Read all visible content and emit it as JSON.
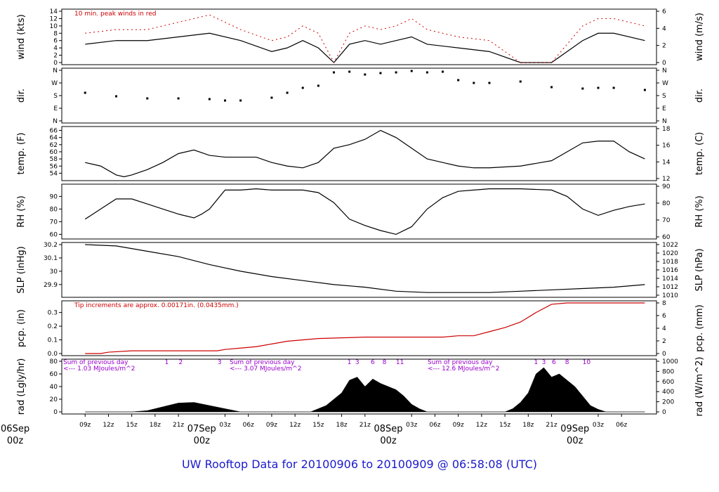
{
  "footer": {
    "title": "UW Rooftop Data for 20100906  to  20100909 @ 06:58:08  (UTC)"
  },
  "colors": {
    "black": "#000000",
    "red": "#cc0000",
    "purple": "#9900cc",
    "footer_blue": "#1a1acc"
  },
  "chart_data": [
    {
      "type": "line",
      "ylabel": "wind (kts)",
      "ylabel_right": "wind (m/s)",
      "ylim": [
        0,
        14
      ],
      "yticks": [
        0,
        2,
        4,
        6,
        8,
        10,
        12,
        14
      ],
      "yticks_right": [
        0,
        2,
        4,
        6
      ],
      "annotation": "10 min. peak winds in red",
      "grid": false,
      "series": [
        {
          "role": "wind",
          "x": [
            0,
            4,
            8,
            12,
            16,
            20,
            24,
            26,
            28,
            30,
            32,
            34,
            36,
            38,
            40,
            42,
            44,
            48,
            52,
            56,
            60,
            64,
            66,
            68,
            72
          ],
          "y": [
            5,
            6,
            6,
            7,
            8,
            6,
            3,
            4,
            6,
            4,
            0,
            5,
            6,
            5,
            6,
            7,
            5,
            4,
            3,
            0,
            0,
            6,
            8,
            8,
            6
          ]
        },
        {
          "role": "peak",
          "x": [
            0,
            4,
            8,
            12,
            16,
            20,
            24,
            26,
            28,
            30,
            32,
            34,
            36,
            38,
            40,
            42,
            44,
            48,
            52,
            56,
            60,
            64,
            66,
            68,
            72
          ],
          "y": [
            8,
            9,
            9,
            11,
            13,
            9,
            6,
            7,
            10,
            8,
            0,
            8,
            10,
            9,
            10,
            12,
            9,
            7,
            6,
            0,
            0,
            10,
            12,
            12,
            10
          ]
        }
      ]
    },
    {
      "type": "scatter",
      "ylabel": "dir.",
      "ylabel_right": "dir.",
      "yticks": [
        "N",
        "E",
        "S",
        "W",
        "N"
      ],
      "yticks_right": [
        "N",
        "E",
        "S",
        "W",
        "N"
      ],
      "grid": false,
      "series": [
        {
          "x": [
            0,
            4,
            8,
            12,
            16,
            18,
            20,
            24,
            26,
            28,
            30,
            32,
            34,
            36,
            38,
            40,
            42,
            44,
            46,
            48,
            50,
            52,
            56,
            60,
            64,
            66,
            68,
            72
          ],
          "y": [
            200,
            175,
            160,
            160,
            155,
            145,
            145,
            165,
            200,
            235,
            250,
            345,
            350,
            330,
            340,
            345,
            355,
            345,
            350,
            290,
            270,
            270,
            280,
            240,
            230,
            235,
            235,
            220
          ]
        }
      ]
    },
    {
      "type": "line",
      "ylabel": "temp. (F)",
      "ylabel_right": "temp. (C)",
      "ylim": [
        52.5,
        66.5
      ],
      "yticks": [
        54,
        56,
        58,
        60,
        62,
        64,
        66
      ],
      "yticks_right": [
        12,
        14,
        16,
        18
      ],
      "grid": false,
      "series": [
        {
          "x": [
            0,
            2,
            4,
            5,
            6,
            8,
            10,
            12,
            14,
            16,
            18,
            20,
            22,
            24,
            26,
            28,
            30,
            32,
            34,
            36,
            38,
            40,
            42,
            44,
            46,
            48,
            50,
            52,
            56,
            60,
            62,
            64,
            66,
            68,
            70,
            72
          ],
          "y": [
            57,
            56,
            53.5,
            53,
            53.5,
            55,
            57,
            59.5,
            60.5,
            59,
            58.5,
            58.5,
            58.5,
            57,
            56,
            55.5,
            57,
            61,
            62,
            63.5,
            66,
            64,
            61,
            58,
            57,
            56,
            55.5,
            55.5,
            56,
            57.5,
            60,
            62.5,
            63,
            63,
            60,
            58
          ]
        }
      ]
    },
    {
      "type": "line",
      "ylabel": "RH (%)",
      "ylabel_right": "RH (%)",
      "ylim": [
        58,
        98
      ],
      "yticks": [
        60,
        70,
        80,
        90
      ],
      "yticks_right": [
        60,
        70,
        80,
        90
      ],
      "grid": false,
      "series": [
        {
          "x": [
            0,
            1,
            2,
            4,
            6,
            8,
            10,
            12,
            14,
            15,
            16,
            18,
            20,
            22,
            24,
            28,
            30,
            32,
            34,
            36,
            38,
            40,
            42,
            44,
            46,
            48,
            50,
            52,
            56,
            60,
            62,
            64,
            66,
            68,
            70,
            72
          ],
          "y": [
            72,
            76,
            80,
            88,
            88,
            84,
            80,
            76,
            73,
            76,
            80,
            95,
            95,
            96,
            95,
            95,
            93,
            85,
            72,
            67,
            63,
            60,
            66,
            80,
            89,
            94,
            95,
            96,
            96,
            95,
            90,
            80,
            75,
            79,
            82,
            84
          ]
        }
      ]
    },
    {
      "type": "line",
      "ylabel": "SLP (inHg)",
      "ylabel_right": "SLP (hPa)",
      "ylim": [
        29.82,
        30.2
      ],
      "yticks": [
        29.9,
        30.0,
        30.1,
        30.2
      ],
      "yticks_right": [
        1010,
        1012,
        1014,
        1016,
        1018,
        1020,
        1022
      ],
      "grid": false,
      "series": [
        {
          "x": [
            0,
            4,
            8,
            12,
            16,
            20,
            24,
            28,
            32,
            36,
            40,
            44,
            48,
            52,
            56,
            60,
            64,
            68,
            72
          ],
          "y": [
            30.2,
            30.19,
            30.15,
            30.11,
            30.05,
            30.0,
            29.96,
            29.93,
            29.9,
            29.88,
            29.85,
            29.84,
            29.84,
            29.84,
            29.85,
            29.86,
            29.87,
            29.88,
            29.9
          ]
        }
      ]
    },
    {
      "type": "line",
      "ylabel": "pcp. (in)",
      "ylabel_right": "pcp. (mm)",
      "ylim": [
        0,
        0.37
      ],
      "yticks": [
        0.0,
        0.1,
        0.2,
        0.3
      ],
      "yticks_right": [
        0,
        2,
        4,
        6,
        8
      ],
      "annotation": "Tip increments are approx. 0.00171in. (0.0435mm.)",
      "grid": false,
      "series": [
        {
          "x": [
            0,
            2,
            3,
            6,
            9,
            12,
            15,
            17,
            18,
            20,
            22,
            24,
            26,
            30,
            36,
            40,
            44,
            46,
            48,
            50,
            52,
            54,
            56,
            58,
            60,
            62,
            64,
            66,
            68,
            70,
            72
          ],
          "y": [
            0,
            0,
            0.01,
            0.02,
            0.02,
            0.02,
            0.02,
            0.02,
            0.03,
            0.04,
            0.05,
            0.07,
            0.09,
            0.11,
            0.12,
            0.12,
            0.12,
            0.12,
            0.13,
            0.13,
            0.16,
            0.19,
            0.23,
            0.3,
            0.36,
            0.37,
            0.37,
            0.37,
            0.37,
            0.37,
            0.37
          ]
        }
      ]
    },
    {
      "type": "area",
      "ylabel": "rad (Lgly/hr)",
      "ylabel_right": "rad (W/m^2)",
      "ylim": [
        0,
        80
      ],
      "yticks": [
        0,
        20,
        40,
        60,
        80
      ],
      "yticks_right": [
        0,
        200,
        400,
        600,
        800,
        1000
      ],
      "grid": false,
      "annotations": [
        {
          "text": "Sum of previous day",
          "color": "purple"
        },
        {
          "text": "<--- 1.03 MJoules/m^2",
          "color": "purple"
        },
        {
          "text": "Sum of previous day",
          "color": "purple"
        },
        {
          "text": "<--- 3.07 MJoules/m^2",
          "color": "purple"
        },
        {
          "text": "Sum of previous day",
          "color": "purple"
        },
        {
          "text": "<--- 12.6 MJoules/m^2",
          "color": "purple"
        }
      ],
      "hour_marks": [
        {
          "text": "1",
          "x": 10.5
        },
        {
          "text": "2",
          "x": 12.3
        },
        {
          "text": "3",
          "x": 17.3
        },
        {
          "text": "1",
          "x": 34.0
        },
        {
          "text": "3",
          "x": 35.0
        },
        {
          "text": "6",
          "x": 37.0
        },
        {
          "text": "8",
          "x": 38.5
        },
        {
          "text": "11",
          "x": 40.5
        },
        {
          "text": "1",
          "x": 58.0
        },
        {
          "text": "3",
          "x": 59.0
        },
        {
          "text": "6",
          "x": 60.3
        },
        {
          "text": "8",
          "x": 62.0
        },
        {
          "text": "10",
          "x": 64.5
        }
      ],
      "series": [
        {
          "x": [
            0,
            6,
            8,
            10,
            12,
            14,
            16,
            18,
            20,
            29,
            31,
            32,
            33,
            34,
            35,
            36,
            37,
            38,
            39,
            40,
            41,
            42,
            43,
            44,
            45,
            54,
            55,
            56,
            57,
            58,
            59,
            60,
            61,
            62,
            63,
            64,
            65,
            66,
            67,
            72
          ],
          "y": [
            0,
            0,
            2,
            8,
            14,
            15,
            10,
            5,
            0,
            0,
            10,
            20,
            30,
            50,
            55,
            40,
            52,
            45,
            40,
            35,
            25,
            12,
            5,
            0,
            0,
            0,
            5,
            15,
            30,
            60,
            70,
            55,
            60,
            50,
            40,
            25,
            10,
            4,
            0,
            0
          ]
        }
      ]
    }
  ],
  "xaxis": {
    "xlim": [
      -3,
      73.5
    ],
    "tick_labels": [
      "09z",
      "12z",
      "15z",
      "18z",
      "21z",
      "03z",
      "06z",
      "09z",
      "12z",
      "15z",
      "18z",
      "21z",
      "03z",
      "06z",
      "09z",
      "12z",
      "15z",
      "18z",
      "21z",
      "03z",
      "06z"
    ],
    "tick_x": [
      0,
      3,
      6,
      9,
      12,
      18,
      21,
      24,
      27,
      30,
      33,
      36,
      42,
      45,
      48,
      51,
      54,
      57,
      60,
      66,
      69
    ],
    "day_labels": [
      {
        "line1": "06Sep",
        "line2": "00z",
        "x": -9
      },
      {
        "line1": "07Sep",
        "line2": "00z",
        "x": 15
      },
      {
        "line1": "08Sep",
        "line2": "00z",
        "x": 39
      },
      {
        "line1": "09Sep",
        "line2": "00z",
        "x": 63
      }
    ]
  }
}
